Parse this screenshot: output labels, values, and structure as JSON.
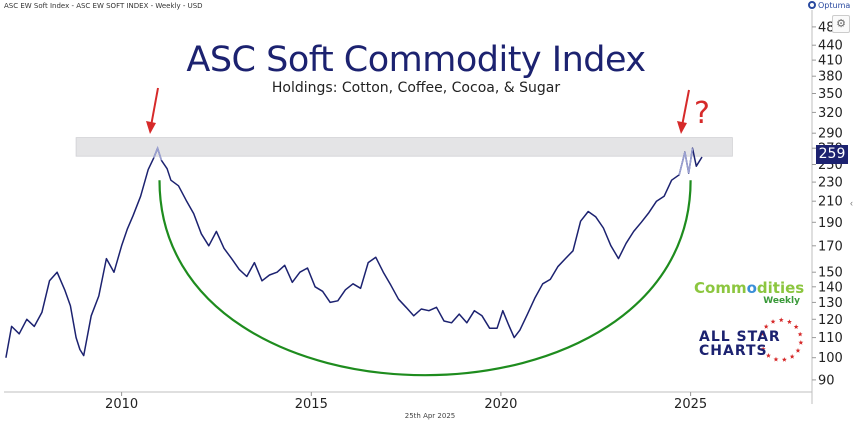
{
  "header": {
    "series_caption": "ASC EW Soft Index - ASC EW SOFT INDEX - Weekly - USD",
    "brand": "Optuma"
  },
  "badge": {
    "current_value": "259"
  },
  "question_mark": "?",
  "watermarks": {
    "commodities": {
      "line1_a": "Comm",
      "line1_b": "o",
      "line1_c": "dities",
      "line2": "Weekly"
    },
    "allstar": {
      "line1": "ALL STAR",
      "line2": "CHARTS"
    }
  },
  "footer": {
    "date": "25th Apr 2025"
  },
  "colors": {
    "price_line": "#1c2270",
    "arc": "#1e8c1e",
    "arrows": "#d62a2a",
    "resistance_band": "#e4e4e6",
    "peak_highlight": "#9aa0d0"
  },
  "chart_data": {
    "type": "line",
    "title": "ASC Soft Commodity Index",
    "subtitle": "Holdings: Cotton, Coffee, Cocoa, & Sugar",
    "frequency": "Weekly",
    "y_scale": "log",
    "ylim": [
      85,
      520
    ],
    "y_ticks": [
      90,
      100,
      110,
      120,
      130,
      140,
      150,
      170,
      190,
      210,
      230,
      250,
      270,
      290,
      320,
      350,
      380,
      410,
      440,
      480
    ],
    "xlim": [
      2006.9,
      2028.2
    ],
    "x_ticks": [
      2010,
      2015,
      2020,
      2025
    ],
    "grid": false,
    "legend": "none",
    "series": [
      {
        "x": [
          2006.95,
          2007.1,
          2007.3,
          2007.5,
          2007.7,
          2007.9,
          2008.1,
          2008.3,
          2008.5,
          2008.65,
          2008.8,
          2008.9,
          2009.0,
          2009.2,
          2009.4,
          2009.6,
          2009.8,
          2010.0,
          2010.15,
          2010.3,
          2010.5,
          2010.7,
          2010.85,
          2010.95,
          2011.05,
          2011.2,
          2011.3,
          2011.5,
          2011.7,
          2011.9,
          2012.1,
          2012.3,
          2012.5,
          2012.7,
          2012.9,
          2013.1,
          2013.3,
          2013.5,
          2013.7,
          2013.9,
          2014.1,
          2014.3,
          2014.5,
          2014.7,
          2014.9,
          2015.1,
          2015.3,
          2015.5,
          2015.7,
          2015.9,
          2016.1,
          2016.3,
          2016.5,
          2016.7,
          2016.9,
          2017.1,
          2017.3,
          2017.5,
          2017.7,
          2017.9,
          2018.1,
          2018.3,
          2018.5,
          2018.7,
          2018.9,
          2019.1,
          2019.3,
          2019.5,
          2019.7,
          2019.9,
          2020.05,
          2020.2,
          2020.35,
          2020.5,
          2020.7,
          2020.9,
          2021.1,
          2021.3,
          2021.5,
          2021.7,
          2021.9,
          2022.1,
          2022.3,
          2022.5,
          2022.7,
          2022.9,
          2023.1,
          2023.3,
          2023.5,
          2023.7,
          2023.9,
          2024.1,
          2024.3,
          2024.5,
          2024.7,
          2024.85,
          2024.95,
          2025.05,
          2025.15,
          2025.3
        ],
        "y": [
          100,
          116,
          112,
          120,
          116,
          124,
          144,
          150,
          138,
          128,
          110,
          104,
          101,
          122,
          134,
          160,
          150,
          170,
          184,
          196,
          215,
          244,
          258,
          270,
          255,
          245,
          232,
          226,
          211,
          198,
          180,
          170,
          182,
          168,
          160,
          152,
          147,
          157,
          144,
          148,
          150,
          155,
          143,
          150,
          153,
          140,
          137,
          130,
          131,
          138,
          142,
          139,
          157,
          161,
          150,
          141,
          132,
          127,
          122,
          126,
          125,
          127,
          119,
          118,
          123,
          118,
          125,
          122,
          115,
          115,
          125,
          117,
          110,
          114,
          123,
          133,
          142,
          145,
          154,
          160,
          166,
          191,
          200,
          195,
          185,
          170,
          160,
          172,
          182,
          190,
          199,
          210,
          215,
          232,
          238,
          265,
          240,
          270,
          248,
          259
        ]
      }
    ],
    "annotations": {
      "resistance_band": [
        260,
        284
      ]
    }
  }
}
